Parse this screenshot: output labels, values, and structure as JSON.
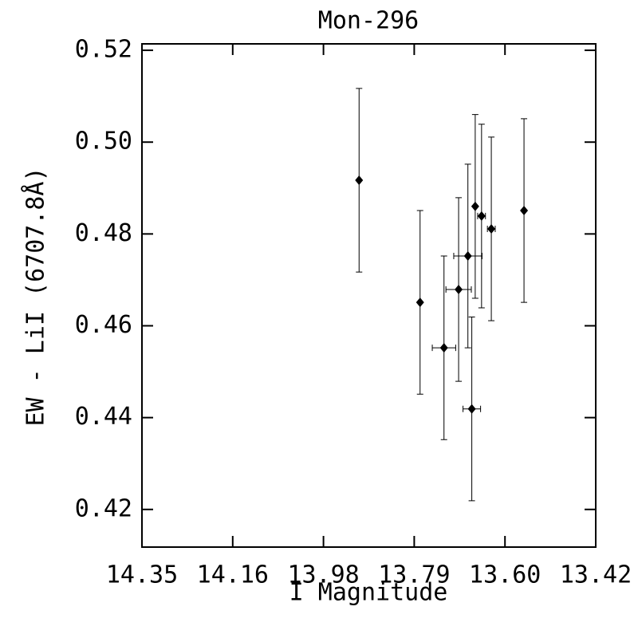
{
  "chart_data": {
    "type": "scatter",
    "title": "Mon-296",
    "x_label": "I Magnitude",
    "y_label": "EW - LiI (6707.8Å)",
    "xlim": [
      14.35,
      13.42
    ],
    "xticks": [
      {
        "value": 14.35,
        "label": "14.35"
      },
      {
        "value": 14.164,
        "label": "14.16"
      },
      {
        "value": 13.978,
        "label": "13.98"
      },
      {
        "value": 13.792,
        "label": "13.79"
      },
      {
        "value": 13.606,
        "label": "13.60"
      },
      {
        "value": 13.42,
        "label": "13.42"
      }
    ],
    "ylim": [
      0.4118,
      0.5214
    ],
    "yticks": [
      0.42,
      0.44,
      0.46,
      0.48,
      {
        "value": 0.5,
        "label": "0.50"
      },
      0.52
    ],
    "color": "#000000",
    "series": [
      {
        "x": [
          13.905,
          13.78,
          13.731,
          13.701,
          13.682,
          13.674,
          13.667,
          13.654,
          13.634,
          13.567
        ],
        "values": [
          0.4917,
          0.4651,
          0.4552,
          0.4679,
          0.4752,
          0.4419,
          0.486,
          0.4839,
          0.4811,
          0.4851
        ],
        "yerr": [
          0.02,
          0.02,
          0.02,
          0.02,
          0.02,
          0.02,
          0.02,
          0.02,
          0.02,
          0.02
        ],
        "xerr": [
          null,
          null,
          0.024,
          0.026,
          0.029,
          0.018,
          null,
          0.008,
          0.008,
          null
        ]
      }
    ]
  }
}
